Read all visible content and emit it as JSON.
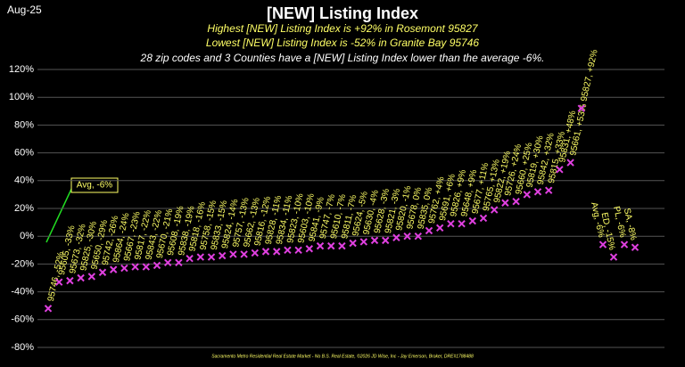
{
  "date": "Aug-25",
  "chart_data": {
    "type": "scatter",
    "title": "[NEW] Listing Index",
    "subtitle_lines": [
      "Highest [NEW] Listing Index is +92% in Rosemont 95827",
      "Lowest [NEW] Listing Index is -52% in Granite Bay 95746",
      "28 zip codes and 3 Counties have a [NEW] Listing Index lower than the average -6%."
    ],
    "annotation": "Avg, -6%",
    "footer": "Sacramento Metro Residential Real Estate Market - No B.S. Real Estate, ©2026 JD Wise, Inc - Jay Emerson, Broker, DRE#1788488",
    "ylim": [
      -80,
      120
    ],
    "yticks": [
      {
        "value": -80,
        "label": "-80%"
      },
      {
        "value": -60,
        "label": "-60%"
      },
      {
        "value": -40,
        "label": "-40%"
      },
      {
        "value": -20,
        "label": "-20%"
      },
      {
        "value": 0,
        "label": "0%"
      },
      {
        "value": 20,
        "label": "20%"
      },
      {
        "value": 40,
        "label": "40%"
      },
      {
        "value": 60,
        "label": "60%"
      },
      {
        "value": 80,
        "label": "80%"
      },
      {
        "value": 100,
        "label": "100%"
      },
      {
        "value": 120,
        "label": "120%"
      }
    ],
    "grid": true,
    "label_color": "#ffff66",
    "series": [
      {
        "color": "#e040e0",
        "values": [
          -52,
          -33,
          -32,
          -30,
          -29,
          -26,
          -24,
          -23,
          -22,
          -22,
          -21,
          -19,
          -19,
          -16,
          -15,
          -15,
          -14,
          -13,
          -13,
          -12,
          -11,
          -11,
          -10,
          -10,
          -9,
          -7,
          -7,
          -7,
          -5,
          -4,
          -3,
          -3,
          -1,
          0,
          0,
          4,
          6,
          9,
          9,
          11,
          13,
          19,
          24,
          25,
          30,
          32,
          33,
          48,
          53,
          92
        ],
        "value_labels": [
          "95746, -52%",
          "95605, -33%",
          "95673, -32%",
          "95825, -30%",
          "95650, -29%",
          "95742, -26%",
          "95864, -24%",
          "95667, -23%",
          "95817, -22%",
          "95843, -22%",
          "95670, -21%",
          "95608, -19%",
          "95838, -19%",
          "95818, -16%",
          "95758, -15%",
          "95833, -15%",
          "95824, -14%",
          "95757, -13%",
          "95662, -13%",
          "95816, -12%",
          "95828, -11%",
          "95834, -11%",
          "95823, -10%",
          "95603, -10%",
          "95841, -9%",
          "95747, -7%",
          "95610, -7%",
          "95811, -7%",
          "95624, -5%",
          "95630, -4%",
          "95628, -3%",
          "95821, -3%",
          "95820, -1%",
          "95678, 0%",
          "95835, 0%",
          "95762, +4%",
          "95691, +6%",
          "95826, +9%",
          "95648, +9%",
          "95677, +11%",
          "95765, +13%",
          "95822, +19%",
          "95726, +24%",
          "95660, +25%",
          "95819, +30%",
          "95842, +32%",
          "95815, +33%",
          "95831, +48%",
          "95661, +53%",
          "95827, +92%"
        ]
      },
      {
        "color": "#e040e0",
        "values": [
          -6,
          -15,
          -6,
          -8
        ],
        "value_labels": [
          "Avg, -6%",
          "ED, -15%",
          "PL, -6%",
          "SA, -8%"
        ]
      }
    ]
  }
}
